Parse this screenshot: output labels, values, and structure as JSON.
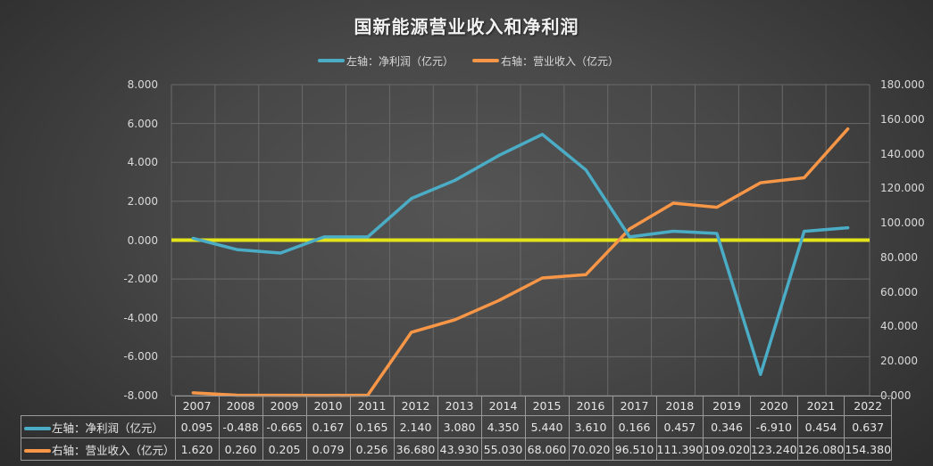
{
  "title": "国新能源营业收入和净利润",
  "colors": {
    "net_profit": "#4bacc6",
    "revenue": "#f79646",
    "zero_line": "#e3e31c",
    "grid": "#6a6a6a"
  },
  "legend": [
    {
      "label": "左轴：净利润（亿元）",
      "color": "#4bacc6"
    },
    {
      "label": "右轴：营业收入（亿元）",
      "color": "#f79646"
    }
  ],
  "left_axis": {
    "ticks": [
      "8.000",
      "6.000",
      "4.000",
      "2.000",
      "0.000",
      "-2.000",
      "-4.000",
      "-6.000",
      "-8.000"
    ]
  },
  "right_axis": {
    "ticks": [
      "180.000",
      "160.000",
      "140.000",
      "120.000",
      "100.000",
      "80.000",
      "60.000",
      "40.000",
      "20.000",
      "0.000"
    ]
  },
  "table": {
    "years": [
      "2007",
      "2008",
      "2009",
      "2010",
      "2011",
      "2012",
      "2013",
      "2014",
      "2015",
      "2016",
      "2017",
      "2018",
      "2019",
      "2020",
      "2021",
      "2022"
    ],
    "rows": [
      {
        "label": "左轴：净利润（亿元）",
        "values": [
          "0.095",
          "-0.488",
          "-0.665",
          "0.167",
          "0.165",
          "2.140",
          "3.080",
          "4.350",
          "5.440",
          "3.610",
          "0.166",
          "0.457",
          "0.346",
          "-6.910",
          "0.454",
          "0.637"
        ]
      },
      {
        "label": "右轴：营业收入（亿元）",
        "values": [
          "1.620",
          "0.260",
          "0.205",
          "0.079",
          "0.256",
          "36.680",
          "43.930",
          "55.030",
          "68.060",
          "70.020",
          "96.510",
          "111.390",
          "109.020",
          "123.240",
          "126.080",
          "154.380"
        ]
      }
    ]
  },
  "chart_data": {
    "type": "line",
    "title": "国新能源营业收入和净利润",
    "categories": [
      "2007",
      "2008",
      "2009",
      "2010",
      "2011",
      "2012",
      "2013",
      "2014",
      "2015",
      "2016",
      "2017",
      "2018",
      "2019",
      "2020",
      "2021",
      "2022"
    ],
    "series": [
      {
        "name": "左轴：净利润（亿元）",
        "axis": "left",
        "values": [
          0.095,
          -0.488,
          -0.665,
          0.167,
          0.165,
          2.14,
          3.08,
          4.35,
          5.44,
          3.61,
          0.166,
          0.457,
          0.346,
          -6.91,
          0.454,
          0.637
        ]
      },
      {
        "name": "右轴：营业收入（亿元）",
        "axis": "right",
        "values": [
          1.62,
          0.26,
          0.205,
          0.079,
          0.256,
          36.68,
          43.93,
          55.03,
          68.06,
          70.02,
          96.51,
          111.39,
          109.02,
          123.24,
          126.08,
          154.38
        ]
      }
    ],
    "ylim_left": [
      -8,
      8
    ],
    "ylim_right": [
      0,
      180
    ],
    "xlabel": "",
    "ylabel_left": "",
    "ylabel_right": "",
    "grid": true,
    "legend_position": "top",
    "annotations": [
      "zero reference line (yellow) on left axis at 0"
    ],
    "data_table": true
  }
}
